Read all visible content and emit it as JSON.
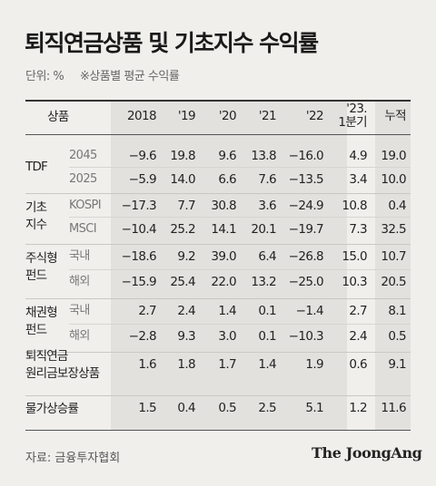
{
  "title": "퇴직연금상품 및 기초지수 수익률",
  "unit_label": "단위: %",
  "note": "※상품별 평균 수익률",
  "source": "자료: 금융투자협회",
  "logo": "The JoongAng",
  "chart_data": {
    "type": "table",
    "title": "퇴직연금상품 및 기초지수 수익률",
    "corner_header": "상품",
    "columns": [
      "2018",
      "'19",
      "'20",
      "'21",
      "'22",
      "'23.\n1분기",
      "누적"
    ],
    "column_lines": [
      [
        "2018"
      ],
      [
        "'19"
      ],
      [
        "'20"
      ],
      [
        "'21"
      ],
      [
        "'22"
      ],
      [
        "'23.",
        "1분기"
      ],
      [
        "누적"
      ]
    ],
    "rows": [
      {
        "category": [
          "TDF"
        ],
        "sub": "2045",
        "values": [
          "−9.6",
          "19.8",
          "9.6",
          "13.8",
          "−16.0",
          "4.9",
          "19.0"
        ]
      },
      {
        "category": [],
        "sub": "2025",
        "values": [
          "−5.9",
          "14.0",
          "6.6",
          "7.6",
          "−13.5",
          "3.4",
          "10.0"
        ]
      },
      {
        "category": [
          "기초",
          "지수"
        ],
        "sub": "KOSPI",
        "values": [
          "−17.3",
          "7.7",
          "30.8",
          "3.6",
          "−24.9",
          "10.8",
          "0.4"
        ]
      },
      {
        "category": [],
        "sub": "MSCI",
        "values": [
          "−10.4",
          "25.2",
          "14.1",
          "20.1",
          "−19.7",
          "7.3",
          "32.5"
        ]
      },
      {
        "category": [
          "주식형",
          "펀드"
        ],
        "sub": "국내",
        "values": [
          "−18.6",
          "9.2",
          "39.0",
          "6.4",
          "−26.8",
          "15.0",
          "10.7"
        ]
      },
      {
        "category": [],
        "sub": "해외",
        "values": [
          "−15.9",
          "25.4",
          "22.0",
          "13.2",
          "−25.0",
          "10.3",
          "20.5"
        ]
      },
      {
        "category": [
          "채권형",
          "펀드"
        ],
        "sub": "국내",
        "values": [
          "2.7",
          "2.4",
          "1.4",
          "0.1",
          "−1.4",
          "2.7",
          "8.1"
        ]
      },
      {
        "category": [],
        "sub": "해외",
        "values": [
          "−2.8",
          "9.3",
          "3.0",
          "0.1",
          "−10.3",
          "2.4",
          "0.5"
        ]
      },
      {
        "category": [
          "퇴직연금",
          "원리금보장상품"
        ],
        "sub": "",
        "values": [
          "1.6",
          "1.8",
          "1.7",
          "1.4",
          "1.9",
          "0.6",
          "9.1"
        ]
      },
      {
        "category": [
          "물가상승률"
        ],
        "sub": "",
        "values": [
          "1.5",
          "0.4",
          "0.5",
          "2.5",
          "5.1",
          "1.2",
          "11.6"
        ]
      }
    ]
  }
}
